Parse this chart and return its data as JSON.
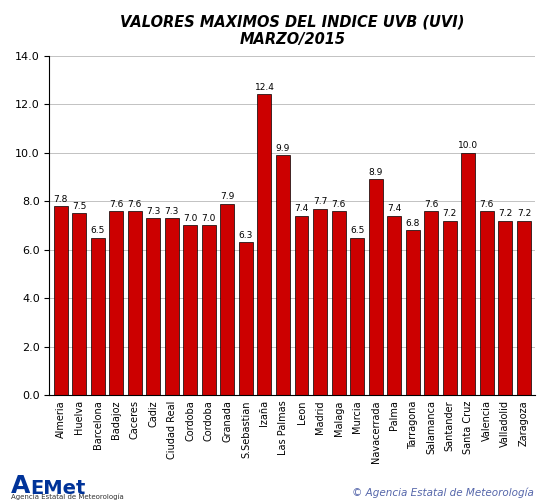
{
  "title_line1": "VALORES MAXIMOS DEL INDICE UVB (UVI)",
  "title_line2": "MARZO/2015",
  "labels": [
    "Almeria",
    "Huelva",
    "Barcelona",
    "Badajoz",
    "Caceres",
    "Cadiz",
    "Ciudad Real",
    "Cordoba",
    "Cordoba",
    "Granada",
    "S.Sebastian",
    "Izaña",
    "Las Palmas",
    "Leon",
    "Madrid",
    "Malaga",
    "Murcia",
    "Navacerrada",
    "Palma",
    "Tarragona",
    "Salamanca",
    "Santander",
    "Santa Cruz",
    "Valencia",
    "Valladolid",
    "Zaragoza"
  ],
  "values": [
    7.8,
    7.5,
    6.5,
    7.6,
    7.6,
    7.3,
    7.3,
    7.0,
    7.0,
    7.9,
    6.3,
    12.4,
    9.9,
    7.4,
    7.7,
    7.6,
    6.5,
    8.9,
    7.4,
    6.8,
    7.6,
    7.2,
    10.0,
    7.6,
    7.2,
    7.2
  ],
  "bar_color": "#cc0000",
  "bar_edge_color": "#000000",
  "ylim": [
    0,
    14.0
  ],
  "yticks": [
    0.0,
    2.0,
    4.0,
    6.0,
    8.0,
    10.0,
    12.0,
    14.0
  ],
  "grid_color": "#aaaaaa",
  "background_color": "#ffffff",
  "title_fontsize": 10.5,
  "label_fontsize": 7,
  "value_fontsize": 6.5,
  "ytick_fontsize": 8,
  "footer_text": "© Agencia Estatal de Meteorología",
  "footer_fontsize": 7.5
}
